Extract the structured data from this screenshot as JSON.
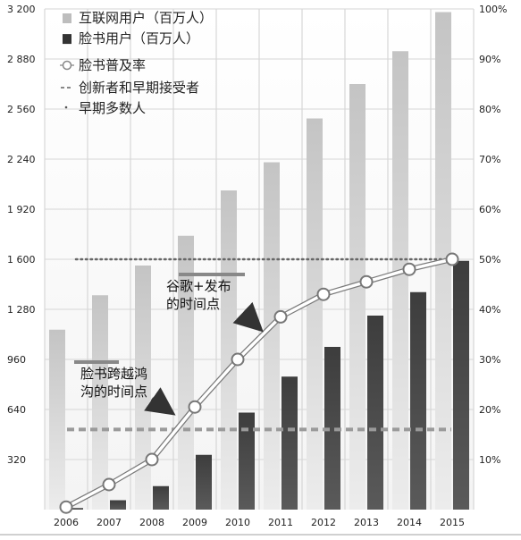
{
  "chart_data": {
    "type": "bar",
    "categories": [
      "2006",
      "2007",
      "2008",
      "2009",
      "2010",
      "2011",
      "2012",
      "2013",
      "2014",
      "2015"
    ],
    "series": [
      {
        "name": "互联网用户（百万人）",
        "type": "bar",
        "axis": "left",
        "color": "#bdbdbd",
        "values": [
          1150,
          1370,
          1560,
          1750,
          2040,
          2220,
          2500,
          2720,
          2930,
          3180
        ]
      },
      {
        "name": "脸书用户（百万人）",
        "type": "bar",
        "axis": "left",
        "color": "#444444",
        "values": [
          10,
          60,
          150,
          350,
          620,
          850,
          1040,
          1240,
          1390,
          1590
        ]
      },
      {
        "name": "脸书普及率",
        "type": "line",
        "axis": "right",
        "color": "#ffffff",
        "values": [
          0.5,
          5,
          10,
          20.5,
          30,
          38.5,
          43,
          45.5,
          48,
          50
        ]
      }
    ],
    "reference_lines": [
      {
        "name": "创新者和早期接受者",
        "axis": "right",
        "value": 16,
        "style": "dashed"
      },
      {
        "name": "早期多数人",
        "axis": "right",
        "value": 50,
        "style": "dotted"
      }
    ],
    "annotations": [
      {
        "id": "google",
        "lines": [
          "谷歌+发布",
          "的时间点"
        ]
      },
      {
        "id": "chasm",
        "lines": [
          "脸书跨越鸿",
          "沟的时间点"
        ]
      }
    ],
    "y_left": {
      "min": 0,
      "max": 3200,
      "ticks": [
        {
          "v": 320,
          "label": "320"
        },
        {
          "v": 640,
          "label": "640"
        },
        {
          "v": 960,
          "label": "960"
        },
        {
          "v": 1280,
          "label": "1 280"
        },
        {
          "v": 1600,
          "label": "1 600"
        },
        {
          "v": 1920,
          "label": "1 920"
        },
        {
          "v": 2240,
          "label": "2 240"
        },
        {
          "v": 2560,
          "label": "2 560"
        },
        {
          "v": 2880,
          "label": "2 880"
        },
        {
          "v": 3200,
          "label": "3 200"
        }
      ]
    },
    "y_right": {
      "min": 0,
      "max": 100,
      "ticks": [
        {
          "v": 10,
          "label": "10%"
        },
        {
          "v": 20,
          "label": "20%"
        },
        {
          "v": 30,
          "label": "30%"
        },
        {
          "v": 40,
          "label": "40%"
        },
        {
          "v": 50,
          "label": "50%"
        },
        {
          "v": 60,
          "label": "60%"
        },
        {
          "v": 70,
          "label": "70%"
        },
        {
          "v": 80,
          "label": "80%"
        },
        {
          "v": 90,
          "label": "90%"
        },
        {
          "v": 100,
          "label": "100%"
        }
      ]
    },
    "grid": true,
    "legend": {
      "placement": "top-left"
    },
    "title": "",
    "xlabel": "",
    "ylabel": ""
  }
}
